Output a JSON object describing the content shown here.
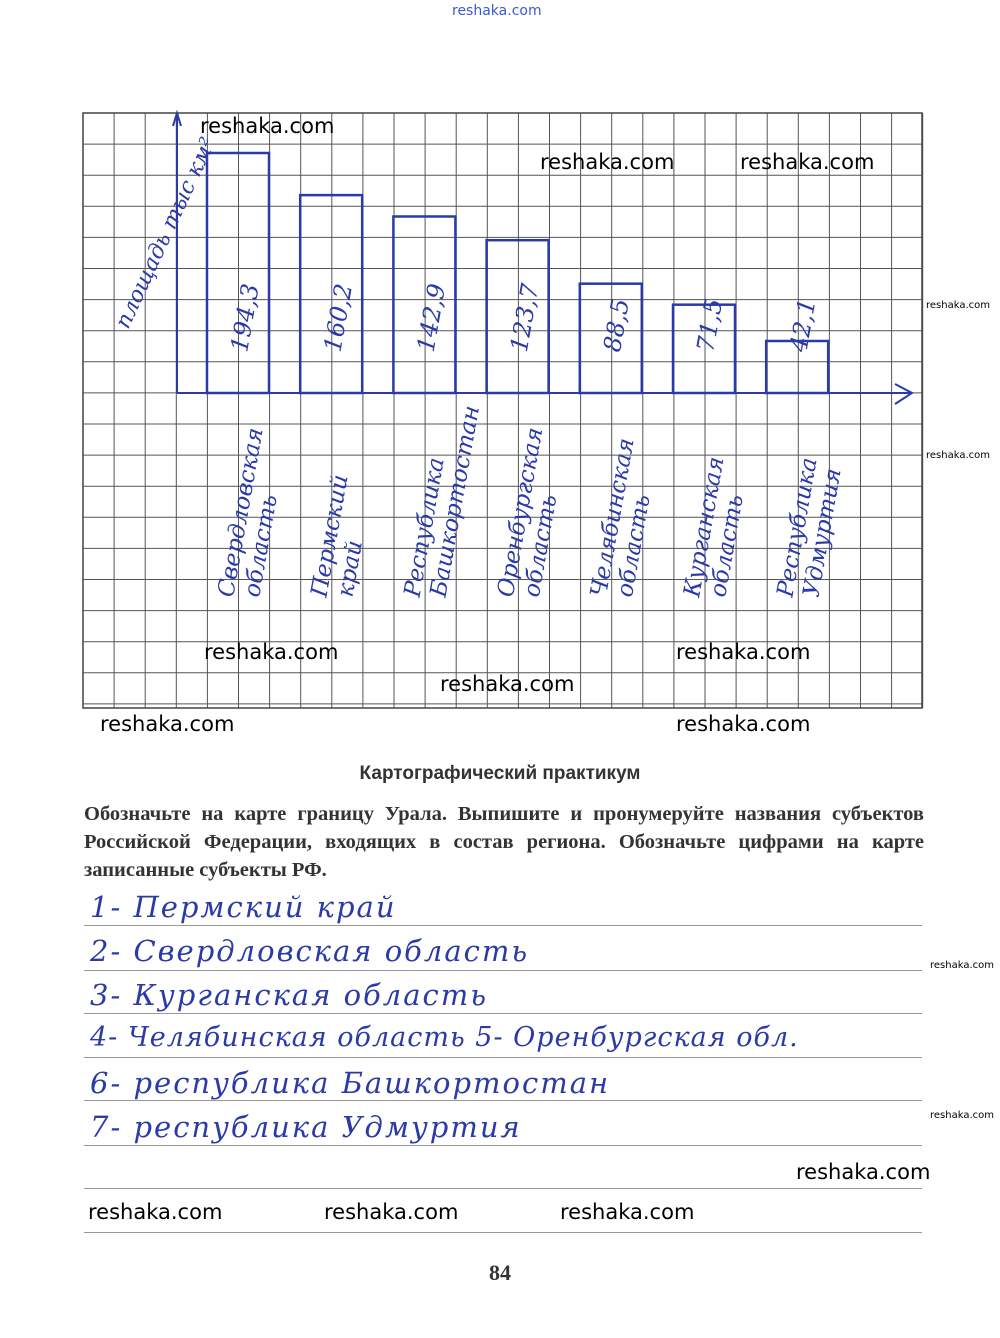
{
  "watermark": "reshaka.com",
  "chart_data": {
    "type": "bar",
    "ylabel": "площадь тыс км²",
    "categories": [
      "Свердловская область",
      "Пермский край",
      "Республика Башкортостан",
      "Оренбургская область",
      "Челябинская область",
      "Курганская область",
      "Республика Удмуртия"
    ],
    "value_labels": [
      "194,3",
      "160,2",
      "142,9",
      "123,7",
      "88,5",
      "71,5",
      "42,1"
    ],
    "values": [
      194.3,
      160.2,
      142.9,
      123.7,
      88.5,
      71.5,
      42.1
    ],
    "grid": true,
    "handwritten": true,
    "bar_color": "#2a3aa8"
  },
  "practicum": {
    "title": "Картографический практикум",
    "task": "Обозначьте на карте границу Урала. Выпишите и пронумеруйте названия субъектов Российской Федерации, входящих в состав региона. Обозначьте цифрами на карте записанные субъекты РФ.",
    "answers": [
      "1- Пермский край",
      "2- Свердловская область",
      "3- Курганская область",
      "4- Челябинская область 5- Оренбургская обл.",
      "6- республика Башкортостан",
      "7- республика Удмуртия"
    ]
  },
  "page_number": "84"
}
